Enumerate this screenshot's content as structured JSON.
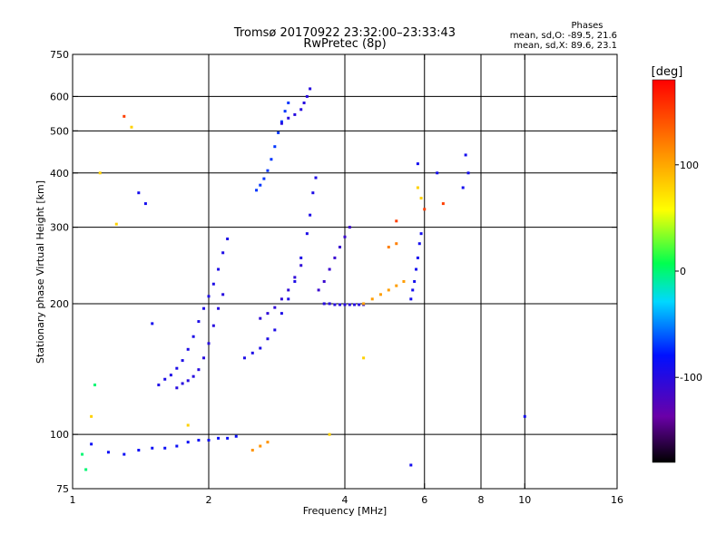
{
  "chart_data": {
    "type": "scatter",
    "title": "Tromsø 20170922 23:32:00–23:33:43",
    "subtitle": "RwPretec (8p)",
    "xlabel": "Frequency [MHz]",
    "ylabel": "Stationary phase Virtual Height [km]",
    "xscale": "log",
    "yscale": "log",
    "xlim": [
      1,
      16
    ],
    "ylim": [
      75,
      750
    ],
    "grid": true,
    "x_ticks": [
      {
        "v": 1,
        "label": "1"
      },
      {
        "v": 2,
        "label": "2"
      },
      {
        "v": 4,
        "label": "4"
      },
      {
        "v": 6,
        "label": "6"
      },
      {
        "v": 8,
        "label": "8"
      },
      {
        "v": 10,
        "label": "10"
      },
      {
        "v": 16,
        "label": "16"
      }
    ],
    "x_grid": [
      2,
      4,
      6,
      8,
      10
    ],
    "y_ticks": [
      {
        "v": 75,
        "label": "75"
      },
      {
        "v": 100,
        "label": "100"
      },
      {
        "v": 200,
        "label": "200"
      },
      {
        "v": 300,
        "label": "300"
      },
      {
        "v": 400,
        "label": "400"
      },
      {
        "v": 500,
        "label": "500"
      },
      {
        "v": 600,
        "label": "600"
      },
      {
        "v": 750,
        "label": "750"
      }
    ],
    "y_grid": [
      100,
      200,
      300,
      400,
      500,
      600
    ],
    "stats": {
      "title": "Phases",
      "line1": "mean, sd,O: -89.5, 21.6",
      "line2": "mean, sd,X:  89.6, 23.1"
    },
    "colorbar": {
      "label": "[deg]",
      "range": [
        -180,
        180
      ],
      "ticks": [
        {
          "v": 100,
          "label": "100"
        },
        {
          "v": 0,
          "label": "0"
        },
        {
          "v": -100,
          "label": "-100"
        }
      ]
    },
    "traces": [
      {
        "name": "",
        "phase": -95,
        "points": [
          [
            1.55,
            130
          ],
          [
            1.6,
            134
          ],
          [
            1.65,
            137
          ],
          [
            1.7,
            142
          ],
          [
            1.75,
            148
          ],
          [
            1.8,
            157
          ],
          [
            1.85,
            168
          ],
          [
            1.9,
            182
          ],
          [
            1.95,
            195
          ],
          [
            2.0,
            208
          ],
          [
            2.05,
            222
          ],
          [
            2.1,
            240
          ],
          [
            2.15,
            262
          ],
          [
            2.2,
            282
          ]
        ]
      },
      {
        "name": "",
        "phase": -100,
        "points": [
          [
            1.7,
            128
          ],
          [
            1.75,
            131
          ],
          [
            1.8,
            133
          ],
          [
            1.85,
            136
          ],
          [
            1.9,
            141
          ],
          [
            1.95,
            150
          ],
          [
            2.0,
            162
          ],
          [
            2.05,
            178
          ],
          [
            2.1,
            195
          ],
          [
            2.15,
            210
          ]
        ]
      },
      {
        "name": "",
        "phase": -95,
        "points": [
          [
            2.4,
            150
          ],
          [
            2.5,
            154
          ],
          [
            2.6,
            158
          ],
          [
            2.7,
            166
          ],
          [
            2.8,
            174
          ],
          [
            2.9,
            190
          ],
          [
            3.0,
            205
          ],
          [
            3.1,
            225
          ],
          [
            3.2,
            255
          ],
          [
            3.3,
            290
          ],
          [
            3.35,
            320
          ],
          [
            3.4,
            360
          ],
          [
            3.45,
            390
          ]
        ]
      },
      {
        "name": "",
        "phase": -105,
        "points": [
          [
            2.6,
            185
          ],
          [
            2.7,
            190
          ],
          [
            2.8,
            196
          ],
          [
            2.9,
            205
          ],
          [
            3.0,
            215
          ],
          [
            3.1,
            230
          ],
          [
            3.2,
            245
          ]
        ]
      },
      {
        "name": "",
        "phase": -70,
        "points": [
          [
            2.55,
            365
          ],
          [
            2.6,
            375
          ],
          [
            2.65,
            388
          ],
          [
            2.7,
            405
          ],
          [
            2.75,
            430
          ],
          [
            2.8,
            460
          ],
          [
            2.85,
            495
          ],
          [
            2.9,
            525
          ],
          [
            2.95,
            555
          ],
          [
            3.0,
            580
          ]
        ]
      },
      {
        "name": "",
        "phase": -100,
        "points": [
          [
            2.9,
            520
          ],
          [
            3.0,
            535
          ],
          [
            3.1,
            545
          ],
          [
            3.2,
            560
          ],
          [
            3.25,
            580
          ],
          [
            3.3,
            600
          ],
          [
            3.35,
            625
          ]
        ]
      },
      {
        "name": "",
        "phase": -85,
        "points": [
          [
            1.1,
            95
          ],
          [
            1.2,
            91
          ],
          [
            1.3,
            90
          ],
          [
            1.4,
            92
          ],
          [
            1.5,
            93
          ],
          [
            1.6,
            93
          ],
          [
            1.7,
            94
          ],
          [
            1.8,
            96
          ],
          [
            1.9,
            97
          ],
          [
            2.0,
            97
          ],
          [
            2.1,
            98
          ],
          [
            2.2,
            98
          ],
          [
            2.3,
            99
          ]
        ]
      },
      {
        "name": "",
        "phase": 110,
        "points": [
          [
            2.5,
            92
          ],
          [
            2.6,
            94
          ],
          [
            2.7,
            96
          ]
        ]
      },
      {
        "name": "",
        "phase": -100,
        "points": [
          [
            3.6,
            200
          ],
          [
            3.7,
            200
          ],
          [
            3.8,
            199
          ],
          [
            3.9,
            199
          ],
          [
            4.0,
            199
          ],
          [
            4.1,
            199
          ],
          [
            4.2,
            199
          ],
          [
            4.3,
            199
          ],
          [
            4.4,
            199
          ]
        ]
      },
      {
        "name": "",
        "phase": -110,
        "points": [
          [
            3.5,
            215
          ],
          [
            3.6,
            225
          ],
          [
            3.7,
            240
          ],
          [
            3.8,
            255
          ],
          [
            3.9,
            270
          ],
          [
            4.0,
            285
          ],
          [
            4.1,
            300
          ]
        ]
      },
      {
        "name": "",
        "phase": 105,
        "points": [
          [
            4.4,
            200
          ],
          [
            4.6,
            205
          ],
          [
            4.8,
            210
          ],
          [
            5.0,
            215
          ],
          [
            5.2,
            220
          ],
          [
            5.4,
            225
          ]
        ]
      },
      {
        "name": "",
        "phase": -90,
        "points": [
          [
            5.6,
            205
          ],
          [
            5.65,
            215
          ],
          [
            5.7,
            225
          ],
          [
            5.75,
            240
          ],
          [
            5.8,
            255
          ],
          [
            5.85,
            275
          ],
          [
            5.9,
            290
          ]
        ]
      },
      {
        "name": "",
        "phase": 120,
        "points": [
          [
            5.0,
            270
          ],
          [
            5.2,
            275
          ]
        ]
      },
      {
        "name": "",
        "phase": -90,
        "points": [
          [
            1.4,
            360
          ],
          [
            1.45,
            340
          ],
          [
            1.5,
            180
          ],
          [
            7.4,
            440
          ],
          [
            7.5,
            400
          ],
          [
            7.3,
            370
          ],
          [
            6.4,
            400
          ],
          [
            5.8,
            420
          ],
          [
            10.0,
            110
          ],
          [
            5.6,
            85
          ]
        ]
      },
      {
        "name": "",
        "phase": 150,
        "points": [
          [
            1.3,
            540
          ],
          [
            6.6,
            340
          ],
          [
            6.0,
            330
          ],
          [
            5.2,
            310
          ]
        ]
      },
      {
        "name": "",
        "phase": 80,
        "points": [
          [
            1.15,
            400
          ],
          [
            1.35,
            510
          ],
          [
            1.25,
            305
          ],
          [
            1.1,
            110
          ],
          [
            1.8,
            105
          ],
          [
            3.7,
            100
          ],
          [
            5.8,
            370
          ],
          [
            5.9,
            350
          ],
          [
            4.4,
            150
          ]
        ]
      },
      {
        "name": "",
        "phase": 0,
        "points": [
          [
            1.12,
            130
          ],
          [
            1.05,
            90
          ],
          [
            1.07,
            83
          ]
        ]
      }
    ]
  }
}
